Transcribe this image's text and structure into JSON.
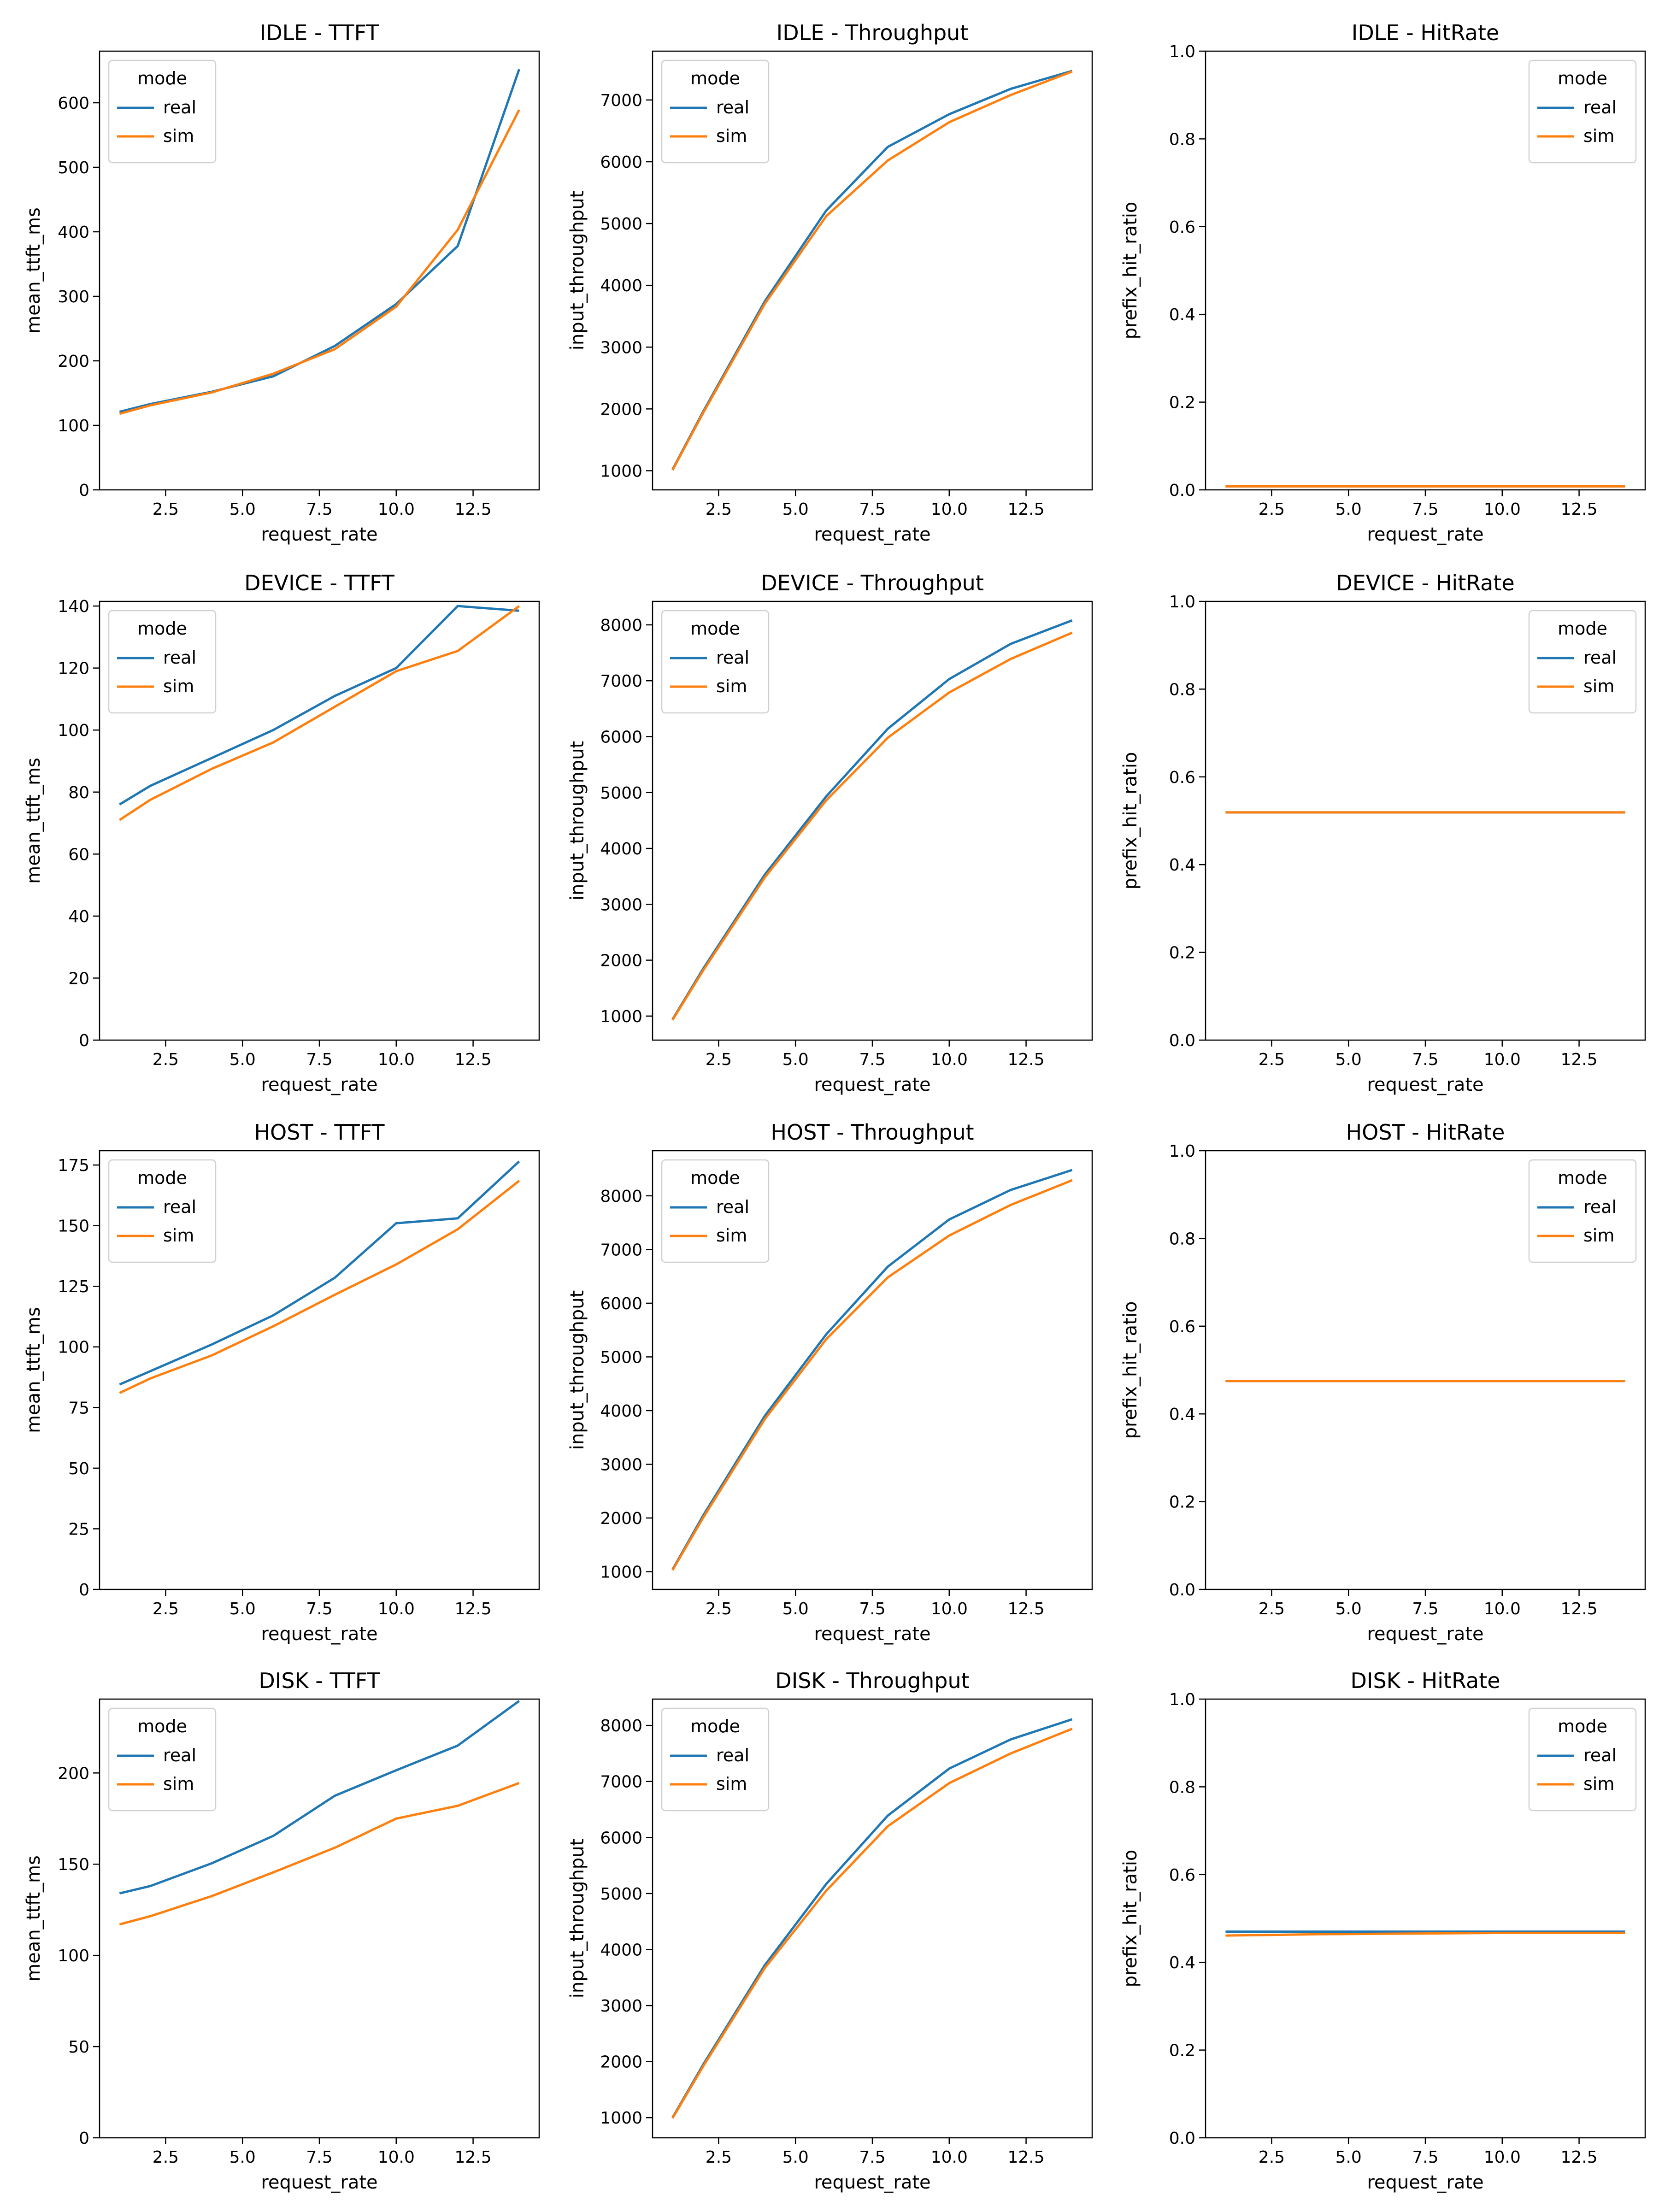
{
  "chart_data": [
    {
      "type": "line",
      "title": "IDLE - TTFT",
      "xlabel": "request_rate",
      "ylabel": "mean_ttft_ms",
      "xlim": [
        0.35,
        14.65
      ],
      "ylim": [
        0,
        680
      ],
      "xticks": [
        2.5,
        5.0,
        7.5,
        10.0,
        12.5
      ],
      "xtick_labels": [
        "2.5",
        "5.0",
        "7.5",
        "10.0",
        "12.5"
      ],
      "yticks": [
        0,
        100,
        200,
        300,
        400,
        500,
        600
      ],
      "ytick_labels": [
        "0",
        "100",
        "200",
        "300",
        "400",
        "500",
        "600"
      ],
      "legend": {
        "title": "mode",
        "position": "upper-left"
      },
      "x": [
        1,
        2,
        4,
        6,
        8,
        10,
        12,
        14
      ],
      "series": [
        {
          "name": "real",
          "color": "#1f77b4",
          "values": [
            121,
            133,
            152,
            176,
            223,
            288,
            378,
            652
          ]
        },
        {
          "name": "sim",
          "color": "#ff7f0e",
          "values": [
            118,
            131,
            151,
            180,
            218,
            284,
            403,
            589
          ]
        }
      ]
    },
    {
      "type": "line",
      "title": "IDLE - Throughput",
      "xlabel": "request_rate",
      "ylabel": "input_throughput",
      "xlim": [
        0.35,
        14.65
      ],
      "ylim": [
        690,
        7790
      ],
      "xticks": [
        2.5,
        5.0,
        7.5,
        10.0,
        12.5
      ],
      "xtick_labels": [
        "2.5",
        "5.0",
        "7.5",
        "10.0",
        "12.5"
      ],
      "yticks": [
        1000,
        2000,
        3000,
        4000,
        5000,
        6000,
        7000
      ],
      "ytick_labels": [
        "1000",
        "2000",
        "3000",
        "4000",
        "5000",
        "6000",
        "7000"
      ],
      "legend": {
        "title": "mode",
        "position": "upper-left"
      },
      "x": [
        1,
        2,
        4,
        6,
        8,
        10,
        12,
        14
      ],
      "series": [
        {
          "name": "real",
          "color": "#1f77b4",
          "values": [
            1020,
            1960,
            3740,
            5210,
            6240,
            6770,
            7180,
            7470
          ]
        },
        {
          "name": "sim",
          "color": "#ff7f0e",
          "values": [
            1010,
            1940,
            3700,
            5120,
            6020,
            6640,
            7080,
            7460
          ]
        }
      ]
    },
    {
      "type": "line",
      "title": "IDLE - HitRate",
      "xlabel": "request_rate",
      "ylabel": "prefix_hit_ratio",
      "xlim": [
        0.35,
        14.65
      ],
      "ylim": [
        0,
        1.0
      ],
      "xticks": [
        2.5,
        5.0,
        7.5,
        10.0,
        12.5
      ],
      "xtick_labels": [
        "2.5",
        "5.0",
        "7.5",
        "10.0",
        "12.5"
      ],
      "yticks": [
        0,
        0.2,
        0.4,
        0.6,
        0.8,
        1.0
      ],
      "ytick_labels": [
        "0.0",
        "0.2",
        "0.4",
        "0.6",
        "0.8",
        "1.0"
      ],
      "legend": {
        "title": "mode",
        "position": "upper-right"
      },
      "x": [
        1,
        2,
        4,
        6,
        8,
        10,
        12,
        14
      ],
      "series": [
        {
          "name": "real",
          "color": "#1f77b4",
          "values": [
            0.008,
            0.008,
            0.008,
            0.008,
            0.008,
            0.008,
            0.008,
            0.008
          ]
        },
        {
          "name": "sim",
          "color": "#ff7f0e",
          "values": [
            0.008,
            0.008,
            0.008,
            0.008,
            0.008,
            0.008,
            0.008,
            0.008
          ]
        }
      ]
    },
    {
      "type": "line",
      "title": "DEVICE - TTFT",
      "xlabel": "request_rate",
      "ylabel": "mean_ttft_ms",
      "xlim": [
        0.35,
        14.65
      ],
      "ylim": [
        0,
        141.5
      ],
      "xticks": [
        2.5,
        5.0,
        7.5,
        10.0,
        12.5
      ],
      "xtick_labels": [
        "2.5",
        "5.0",
        "7.5",
        "10.0",
        "12.5"
      ],
      "yticks": [
        0,
        20,
        40,
        60,
        80,
        100,
        120,
        140
      ],
      "ytick_labels": [
        "0",
        "20",
        "40",
        "60",
        "80",
        "100",
        "120",
        "140"
      ],
      "legend": {
        "title": "mode",
        "position": "upper-left"
      },
      "x": [
        1,
        2,
        4,
        6,
        8,
        10,
        12,
        14
      ],
      "series": [
        {
          "name": "real",
          "color": "#1f77b4",
          "values": [
            76,
            82,
            91,
            100,
            111,
            120,
            140,
            138.5
          ]
        },
        {
          "name": "sim",
          "color": "#ff7f0e",
          "values": [
            71,
            77.5,
            87.5,
            96,
            107.5,
            119,
            125.5,
            140
          ]
        }
      ]
    },
    {
      "type": "line",
      "title": "DEVICE - Throughput",
      "xlabel": "request_rate",
      "ylabel": "input_throughput",
      "xlim": [
        0.35,
        14.65
      ],
      "ylim": [
        570,
        8420
      ],
      "xticks": [
        2.5,
        5.0,
        7.5,
        10.0,
        12.5
      ],
      "xtick_labels": [
        "2.5",
        "5.0",
        "7.5",
        "10.0",
        "12.5"
      ],
      "yticks": [
        1000,
        2000,
        3000,
        4000,
        5000,
        6000,
        7000,
        8000
      ],
      "ytick_labels": [
        "1000",
        "2000",
        "3000",
        "4000",
        "5000",
        "6000",
        "7000",
        "8000"
      ],
      "legend": {
        "title": "mode",
        "position": "upper-left"
      },
      "x": [
        1,
        2,
        4,
        6,
        8,
        10,
        12,
        14
      ],
      "series": [
        {
          "name": "real",
          "color": "#1f77b4",
          "values": [
            940,
            1850,
            3530,
            4930,
            6140,
            7030,
            7660,
            8080
          ]
        },
        {
          "name": "sim",
          "color": "#ff7f0e",
          "values": [
            930,
            1820,
            3480,
            4860,
            5980,
            6790,
            7390,
            7860
          ]
        }
      ]
    },
    {
      "type": "line",
      "title": "DEVICE - HitRate",
      "xlabel": "request_rate",
      "ylabel": "prefix_hit_ratio",
      "xlim": [
        0.35,
        14.65
      ],
      "ylim": [
        0,
        1.0
      ],
      "xticks": [
        2.5,
        5.0,
        7.5,
        10.0,
        12.5
      ],
      "xtick_labels": [
        "2.5",
        "5.0",
        "7.5",
        "10.0",
        "12.5"
      ],
      "yticks": [
        0,
        0.2,
        0.4,
        0.6,
        0.8,
        1.0
      ],
      "ytick_labels": [
        "0.0",
        "0.2",
        "0.4",
        "0.6",
        "0.8",
        "1.0"
      ],
      "legend": {
        "title": "mode",
        "position": "upper-right"
      },
      "x": [
        1,
        2,
        4,
        6,
        8,
        10,
        12,
        14
      ],
      "series": [
        {
          "name": "real",
          "color": "#1f77b4",
          "values": [
            0.519,
            0.519,
            0.519,
            0.519,
            0.519,
            0.519,
            0.519,
            0.519
          ]
        },
        {
          "name": "sim",
          "color": "#ff7f0e",
          "values": [
            0.519,
            0.519,
            0.519,
            0.519,
            0.519,
            0.519,
            0.519,
            0.519
          ]
        }
      ]
    },
    {
      "type": "line",
      "title": "HOST - TTFT",
      "xlabel": "request_rate",
      "ylabel": "mean_ttft_ms",
      "xlim": [
        0.35,
        14.65
      ],
      "ylim": [
        0,
        180.9
      ],
      "xticks": [
        2.5,
        5.0,
        7.5,
        10.0,
        12.5
      ],
      "xtick_labels": [
        "2.5",
        "5.0",
        "7.5",
        "10.0",
        "12.5"
      ],
      "yticks": [
        0,
        25,
        50,
        75,
        100,
        125,
        150,
        175
      ],
      "ytick_labels": [
        "0",
        "25",
        "50",
        "75",
        "100",
        "125",
        "150",
        "175"
      ],
      "legend": {
        "title": "mode",
        "position": "upper-left"
      },
      "x": [
        1,
        2,
        4,
        6,
        8,
        10,
        12,
        14
      ],
      "series": [
        {
          "name": "real",
          "color": "#1f77b4",
          "values": [
            84.5,
            90,
            101,
            113,
            128.5,
            151,
            153,
            176.5
          ]
        },
        {
          "name": "sim",
          "color": "#ff7f0e",
          "values": [
            81,
            87,
            96.5,
            108.5,
            121.5,
            134,
            148.5,
            168.5
          ]
        }
      ]
    },
    {
      "type": "line",
      "title": "HOST - Throughput",
      "xlabel": "request_rate",
      "ylabel": "input_throughput",
      "xlim": [
        0.35,
        14.65
      ],
      "ylim": [
        670,
        8840
      ],
      "xticks": [
        2.5,
        5.0,
        7.5,
        10.0,
        12.5
      ],
      "xtick_labels": [
        "2.5",
        "5.0",
        "7.5",
        "10.0",
        "12.5"
      ],
      "yticks": [
        1000,
        2000,
        3000,
        4000,
        5000,
        6000,
        7000,
        8000
      ],
      "ytick_labels": [
        "1000",
        "2000",
        "3000",
        "4000",
        "5000",
        "6000",
        "7000",
        "8000"
      ],
      "legend": {
        "title": "mode",
        "position": "upper-left"
      },
      "x": [
        1,
        2,
        4,
        6,
        8,
        10,
        12,
        14
      ],
      "series": [
        {
          "name": "real",
          "color": "#1f77b4",
          "values": [
            1040,
            2050,
            3900,
            5420,
            6680,
            7560,
            8110,
            8480
          ]
        },
        {
          "name": "sim",
          "color": "#ff7f0e",
          "values": [
            1030,
            2010,
            3840,
            5330,
            6480,
            7260,
            7830,
            8290
          ]
        }
      ]
    },
    {
      "type": "line",
      "title": "HOST - HitRate",
      "xlabel": "request_rate",
      "ylabel": "prefix_hit_ratio",
      "xlim": [
        0.35,
        14.65
      ],
      "ylim": [
        0,
        1.0
      ],
      "xticks": [
        2.5,
        5.0,
        7.5,
        10.0,
        12.5
      ],
      "xtick_labels": [
        "2.5",
        "5.0",
        "7.5",
        "10.0",
        "12.5"
      ],
      "yticks": [
        0,
        0.2,
        0.4,
        0.6,
        0.8,
        1.0
      ],
      "ytick_labels": [
        "0.0",
        "0.2",
        "0.4",
        "0.6",
        "0.8",
        "1.0"
      ],
      "legend": {
        "title": "mode",
        "position": "upper-right"
      },
      "x": [
        1,
        2,
        4,
        6,
        8,
        10,
        12,
        14
      ],
      "series": [
        {
          "name": "real",
          "color": "#1f77b4",
          "values": [
            0.475,
            0.475,
            0.475,
            0.475,
            0.475,
            0.475,
            0.475,
            0.475
          ]
        },
        {
          "name": "sim",
          "color": "#ff7f0e",
          "values": [
            0.475,
            0.475,
            0.475,
            0.475,
            0.475,
            0.475,
            0.475,
            0.475
          ]
        }
      ]
    },
    {
      "type": "line",
      "title": "DISK - TTFT",
      "xlabel": "request_rate",
      "ylabel": "mean_ttft_ms",
      "xlim": [
        0.35,
        14.65
      ],
      "ylim": [
        0,
        240.5
      ],
      "xticks": [
        2.5,
        5.0,
        7.5,
        10.0,
        12.5
      ],
      "xtick_labels": [
        "2.5",
        "5.0",
        "7.5",
        "10.0",
        "12.5"
      ],
      "yticks": [
        0,
        50,
        100,
        150,
        200
      ],
      "ytick_labels": [
        "0",
        "50",
        "100",
        "150",
        "200"
      ],
      "legend": {
        "title": "mode",
        "position": "upper-left"
      },
      "x": [
        1,
        2,
        4,
        6,
        8,
        10,
        12,
        14
      ],
      "series": [
        {
          "name": "real",
          "color": "#1f77b4",
          "values": [
            134,
            138,
            150.5,
            165.5,
            187.5,
            201.5,
            215,
            239.5
          ]
        },
        {
          "name": "sim",
          "color": "#ff7f0e",
          "values": [
            117,
            121.5,
            132.5,
            145.5,
            159,
            175,
            182,
            194.5
          ]
        }
      ]
    },
    {
      "type": "line",
      "title": "DISK - Throughput",
      "xlabel": "request_rate",
      "ylabel": "input_throughput",
      "xlim": [
        0.35,
        14.65
      ],
      "ylim": [
        640,
        8470
      ],
      "xticks": [
        2.5,
        5.0,
        7.5,
        10.0,
        12.5
      ],
      "xtick_labels": [
        "2.5",
        "5.0",
        "7.5",
        "10.0",
        "12.5"
      ],
      "yticks": [
        1000,
        2000,
        3000,
        4000,
        5000,
        6000,
        7000,
        8000
      ],
      "ytick_labels": [
        "1000",
        "2000",
        "3000",
        "4000",
        "5000",
        "6000",
        "7000",
        "8000"
      ],
      "legend": {
        "title": "mode",
        "position": "upper-left"
      },
      "x": [
        1,
        2,
        4,
        6,
        8,
        10,
        12,
        14
      ],
      "series": [
        {
          "name": "real",
          "color": "#1f77b4",
          "values": [
            1000,
            1950,
            3720,
            5170,
            6390,
            7230,
            7750,
            8110
          ]
        },
        {
          "name": "sim",
          "color": "#ff7f0e",
          "values": [
            990,
            1920,
            3670,
            5050,
            6200,
            6970,
            7500,
            7940
          ]
        }
      ]
    },
    {
      "type": "line",
      "title": "DISK - HitRate",
      "xlabel": "request_rate",
      "ylabel": "prefix_hit_ratio",
      "xlim": [
        0.35,
        14.65
      ],
      "ylim": [
        0,
        1.0
      ],
      "xticks": [
        2.5,
        5.0,
        7.5,
        10.0,
        12.5
      ],
      "xtick_labels": [
        "2.5",
        "5.0",
        "7.5",
        "10.0",
        "12.5"
      ],
      "yticks": [
        0,
        0.2,
        0.4,
        0.6,
        0.8,
        1.0
      ],
      "ytick_labels": [
        "0.0",
        "0.2",
        "0.4",
        "0.6",
        "0.8",
        "1.0"
      ],
      "legend": {
        "title": "mode",
        "position": "upper-right"
      },
      "x": [
        1,
        2,
        4,
        6,
        8,
        10,
        12,
        14
      ],
      "series": [
        {
          "name": "real",
          "color": "#1f77b4",
          "values": [
            0.47,
            0.47,
            0.47,
            0.47,
            0.47,
            0.47,
            0.47,
            0.47
          ]
        },
        {
          "name": "sim",
          "color": "#ff7f0e",
          "values": [
            0.461,
            0.462,
            0.464,
            0.465,
            0.466,
            0.467,
            0.467,
            0.467
          ]
        }
      ]
    }
  ]
}
